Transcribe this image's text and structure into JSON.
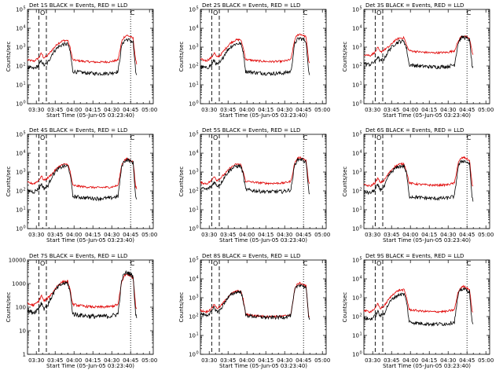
{
  "figure": {
    "title_suffix": "BLACK = Events, RED = LLD",
    "xlabel": "Start Time (05-Jun-05 03:23:40)",
    "ylabel": "Counts/sec",
    "markers": {
      "O": "O",
      "C": "C"
    }
  },
  "chart_data": [
    {
      "type": "line",
      "title": "Det 1S BLACK = Events, RED = LLD",
      "detector": "Det 1S",
      "ylabel_style": "exp",
      "x_ticks": [
        "03:30",
        "03:45",
        "04:00",
        "04:15",
        "04:30",
        "04:45",
        "05:00"
      ],
      "xlim_minutes_after_0323": [
        0,
        100
      ],
      "ylim": [
        1,
        100000
      ],
      "series": [
        {
          "name": "Events",
          "color": "#000000"
        },
        {
          "name": "LLD",
          "color": "#e00000"
        }
      ],
      "profile": {
        "base_events": 40,
        "base_lld": 160,
        "pre_events": 120,
        "pre_lld": 300,
        "flare1_events": 1400,
        "flare1_lld": 2200,
        "flare2_events": 2600,
        "flare2_lld": 4200
      },
      "vlines": {
        "dashed": [
          9,
          15
        ],
        "dotted": [
          82
        ]
      }
    },
    {
      "type": "line",
      "title": "Det 2S BLACK = Events, RED = LLD",
      "detector": "Det 2S",
      "ylabel_style": "exp",
      "x_ticks": [
        "03:30",
        "03:45",
        "04:00",
        "04:15",
        "04:30",
        "04:45",
        "05:00"
      ],
      "xlim_minutes_after_0323": [
        0,
        100
      ],
      "ylim": [
        1,
        100000
      ],
      "series": [
        {
          "name": "Events",
          "color": "#000000"
        },
        {
          "name": "LLD",
          "color": "#e00000"
        }
      ],
      "profile": {
        "base_events": 40,
        "base_lld": 170,
        "pre_events": 130,
        "pre_lld": 320,
        "flare1_events": 1500,
        "flare1_lld": 2400,
        "flare2_events": 3000,
        "flare2_lld": 5000
      },
      "vlines": {
        "dashed": [
          9,
          15
        ],
        "dotted": [
          82
        ]
      }
    },
    {
      "type": "line",
      "title": "Det 3S BLACK = Events, RED = LLD",
      "detector": "Det 3S",
      "ylabel_style": "exp",
      "x_ticks": [
        "03:30",
        "03:45",
        "04:00",
        "04:15",
        "04:30",
        "04:45",
        "05:00"
      ],
      "xlim_minutes_after_0323": [
        0,
        100
      ],
      "ylim": [
        1,
        100000
      ],
      "series": [
        {
          "name": "Events",
          "color": "#000000"
        },
        {
          "name": "LLD",
          "color": "#e00000"
        }
      ],
      "profile": {
        "base_events": 90,
        "base_lld": 500,
        "pre_events": 200,
        "pre_lld": 600,
        "flare1_events": 2000,
        "flare1_lld": 3000,
        "flare2_events": 3500,
        "flare2_lld": 4000
      },
      "vlines": {
        "dashed": [
          9,
          15
        ],
        "dotted": [
          82
        ]
      }
    },
    {
      "type": "line",
      "title": "Det 4S BLACK = Events, RED = LLD",
      "detector": "Det 4S",
      "ylabel_style": "exp",
      "x_ticks": [
        "03:30",
        "03:45",
        "04:00",
        "04:15",
        "04:30",
        "04:45",
        "05:00"
      ],
      "xlim_minutes_after_0323": [
        0,
        100
      ],
      "ylim": [
        1,
        100000
      ],
      "series": [
        {
          "name": "Events",
          "color": "#000000"
        },
        {
          "name": "LLD",
          "color": "#e00000"
        }
      ],
      "profile": {
        "base_events": 40,
        "base_lld": 150,
        "pre_events": 150,
        "pre_lld": 400,
        "flare1_events": 2000,
        "flare1_lld": 2500,
        "flare2_events": 4500,
        "flare2_lld": 5000
      },
      "vlines": {
        "dashed": [
          9,
          15
        ],
        "dotted": [
          82
        ]
      }
    },
    {
      "type": "line",
      "title": "Det 5S BLACK = Events, RED = LLD",
      "detector": "Det 5S",
      "ylabel_style": "exp",
      "x_ticks": [
        "03:30",
        "03:45",
        "04:00",
        "04:15",
        "04:30",
        "04:45",
        "05:00"
      ],
      "xlim_minutes_after_0323": [
        0,
        100
      ],
      "ylim": [
        1,
        100000
      ],
      "series": [
        {
          "name": "Events",
          "color": "#000000"
        },
        {
          "name": "LLD",
          "color": "#e00000"
        }
      ],
      "profile": {
        "base_events": 90,
        "base_lld": 250,
        "pre_events": 200,
        "pre_lld": 400,
        "flare1_events": 2000,
        "flare1_lld": 2500,
        "flare2_events": 5000,
        "flare2_lld": 6000
      },
      "vlines": {
        "dashed": [
          9,
          15
        ],
        "dotted": [
          82
        ]
      }
    },
    {
      "type": "line",
      "title": "Det 6S BLACK = Events, RED = LLD",
      "detector": "Det 6S",
      "ylabel_style": "exp",
      "x_ticks": [
        "03:30",
        "03:45",
        "04:00",
        "04:15",
        "04:30",
        "04:45",
        "05:00"
      ],
      "xlim_minutes_after_0323": [
        0,
        100
      ],
      "ylim": [
        1,
        100000
      ],
      "series": [
        {
          "name": "Events",
          "color": "#000000"
        },
        {
          "name": "LLD",
          "color": "#e00000"
        }
      ],
      "profile": {
        "base_events": 40,
        "base_lld": 200,
        "pre_events": 130,
        "pre_lld": 300,
        "flare1_events": 2000,
        "flare1_lld": 2600,
        "flare2_events": 4000,
        "flare2_lld": 6000
      },
      "vlines": {
        "dashed": [
          9,
          15
        ],
        "dotted": [
          82
        ]
      }
    },
    {
      "type": "line",
      "title": "Det 7S BLACK = Events, RED = LLD",
      "detector": "Det 7S",
      "ylabel_style": "plain",
      "y_ticks": [
        "1",
        "10",
        "100",
        "1000",
        "10000"
      ],
      "x_ticks": [
        "03:30",
        "03:45",
        "04:00",
        "04:15",
        "04:30",
        "04:45",
        "05:00"
      ],
      "xlim_minutes_after_0323": [
        0,
        100
      ],
      "ylim": [
        1,
        10000
      ],
      "series": [
        {
          "name": "Events",
          "color": "#000000"
        },
        {
          "name": "LLD",
          "color": "#e00000"
        }
      ],
      "profile": {
        "base_events": 40,
        "base_lld": 100,
        "pre_events": 100,
        "pre_lld": 200,
        "flare1_events": 1000,
        "flare1_lld": 1200,
        "flare2_events": 3000,
        "flare2_lld": 2500
      },
      "vlines": {
        "dashed": [
          9,
          15
        ],
        "dotted": [
          82
        ]
      }
    },
    {
      "type": "line",
      "title": "Det 8S BLACK = Events, RED = LLD",
      "detector": "Det 8S",
      "ylabel_style": "exp",
      "x_ticks": [
        "03:30",
        "03:45",
        "04:00",
        "04:15",
        "04:30",
        "04:45",
        "05:00"
      ],
      "xlim_minutes_after_0323": [
        0,
        100
      ],
      "ylim": [
        1,
        100000
      ],
      "series": [
        {
          "name": "Events",
          "color": "#000000"
        },
        {
          "name": "LLD",
          "color": "#e00000"
        }
      ],
      "profile": {
        "base_events": 90,
        "base_lld": 100,
        "pre_events": 200,
        "pre_lld": 300,
        "flare1_events": 2000,
        "flare1_lld": 2200,
        "flare2_events": 5000,
        "flare2_lld": 6000
      },
      "vlines": {
        "dashed": [
          9,
          15
        ],
        "dotted": [
          82
        ]
      }
    },
    {
      "type": "line",
      "title": "Det 9S BLACK = Events, RED = LLD",
      "detector": "Det 9S",
      "ylabel_style": "exp",
      "x_ticks": [
        "03:30",
        "03:45",
        "04:00",
        "04:15",
        "04:30",
        "04:45",
        "05:00"
      ],
      "xlim_minutes_after_0323": [
        0,
        100
      ],
      "ylim": [
        1,
        100000
      ],
      "series": [
        {
          "name": "Events",
          "color": "#000000"
        },
        {
          "name": "LLD",
          "color": "#e00000"
        }
      ],
      "profile": {
        "base_events": 40,
        "base_lld": 180,
        "pre_events": 120,
        "pre_lld": 300,
        "flare1_events": 1500,
        "flare1_lld": 2500,
        "flare2_events": 3000,
        "flare2_lld": 4000
      },
      "vlines": {
        "dashed": [
          9,
          15
        ],
        "dotted": [
          82
        ]
      }
    }
  ]
}
